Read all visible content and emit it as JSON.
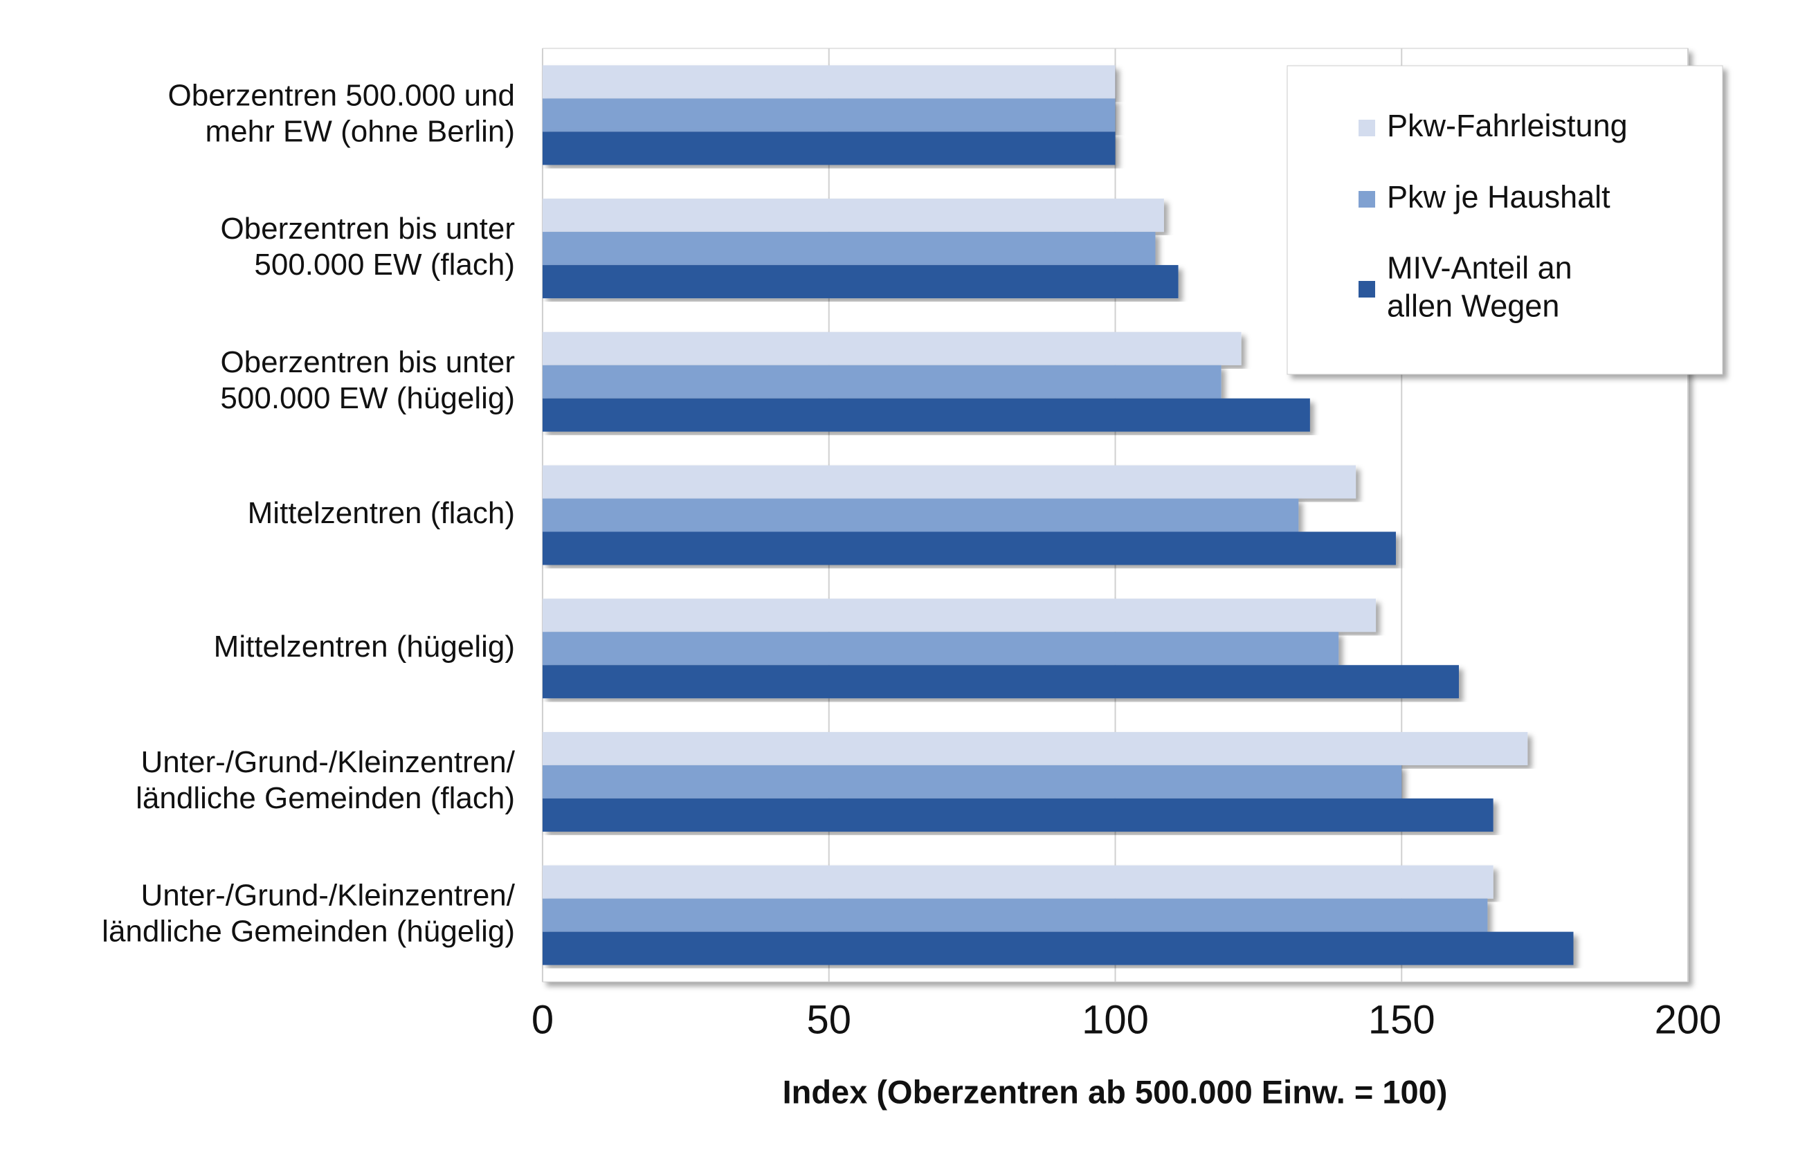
{
  "chart_data": {
    "type": "hbar",
    "x_label": "Index (Oberzentren ab 500.000 Einw. = 100)",
    "categories": [
      "Oberzentren 500.000 und\nmehr EW (ohne Berlin)",
      "Oberzentren bis unter\n500.000 EW (flach)",
      "Oberzentren bis unter\n500.000 EW (hügelig)",
      "Mittelzentren (flach)",
      "Mittelzentren (hügelig)",
      "Unter-/Grund-/Kleinzentren/\nländliche Gemeinden (flach)",
      "Unter-/Grund-/Kleinzentren/\nländliche Gemeinden (hügelig)"
    ],
    "series": [
      {
        "name": "Pkw-Fahrleistung",
        "color": "#d3dcee",
        "values": [
          100,
          108.5,
          122,
          142,
          145.5,
          172,
          166
        ]
      },
      {
        "name": "Pkw je Haushalt",
        "color": "#80a1d1",
        "values": [
          100,
          107,
          118.5,
          132,
          139,
          150,
          165
        ]
      },
      {
        "name": "MIV-Anteil an\nallen Wegen",
        "color": "#2b589c",
        "values": [
          100,
          111,
          134,
          149,
          160,
          166,
          180
        ]
      }
    ],
    "xlim": [
      0,
      200
    ],
    "xticks": [
      0,
      50,
      100,
      150,
      200
    ],
    "grid": true,
    "legend": "top-right"
  }
}
